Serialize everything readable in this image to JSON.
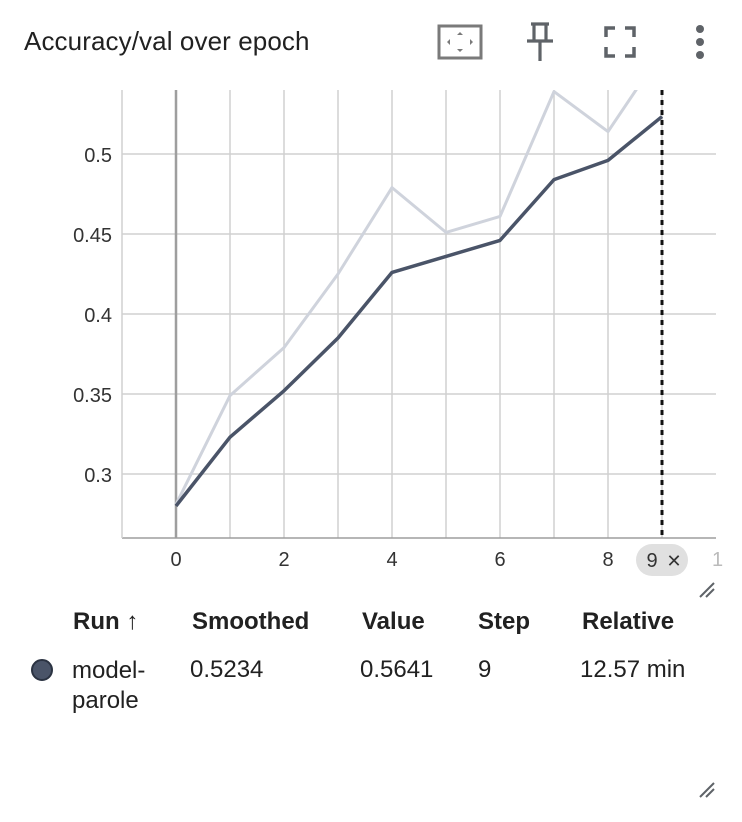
{
  "card": {
    "title": "Accuracy/val over epoch"
  },
  "toolbar": {
    "icons": [
      "fit-domain-icon",
      "pin-icon",
      "fullscreen-icon",
      "more-vert-icon"
    ]
  },
  "colors": {
    "smoothed_line": "#4a5468",
    "raw_line": "#cfd3dc",
    "grid": "#d0d0d0",
    "axis": "#9e9e9e",
    "hover_chip": "#e0e0e0"
  },
  "chart_data": {
    "type": "line",
    "title": "Accuracy/val over epoch",
    "xlabel": "",
    "ylabel": "",
    "x_ticks": [
      "0",
      "2",
      "4",
      "6",
      "8"
    ],
    "y_ticks": [
      "0.3",
      "0.35",
      "0.4",
      "0.45",
      "0.5"
    ],
    "xlim": [
      -1,
      10
    ],
    "ylim": [
      0.26,
      0.54
    ],
    "grid": true,
    "hover_step": "9",
    "hover_close": "✕",
    "clipped_tick_label": "1",
    "series": [
      {
        "name": "model-parole",
        "style": "raw",
        "x": [
          0,
          1,
          2,
          3,
          4,
          5,
          6,
          7,
          8,
          9
        ],
        "values": [
          0.281,
          0.349,
          0.379,
          0.425,
          0.479,
          0.451,
          0.461,
          0.539,
          0.514,
          0.5641
        ]
      },
      {
        "name": "model-parole",
        "style": "smoothed",
        "x": [
          0,
          1,
          2,
          3,
          4,
          5,
          6,
          7,
          8,
          9
        ],
        "values": [
          0.28,
          0.323,
          0.352,
          0.385,
          0.426,
          0.436,
          0.446,
          0.484,
          0.496,
          0.5234
        ]
      }
    ]
  },
  "table": {
    "headers": {
      "run": "Run ↑",
      "smoothed": "Smoothed",
      "value": "Value",
      "step": "Step",
      "relative": "Relative"
    },
    "rows": [
      {
        "run_line1": "model-",
        "run_line2": "parole",
        "smoothed": "0.5234",
        "value": "0.5641",
        "step": "9",
        "relative": "12.57 min"
      }
    ]
  }
}
